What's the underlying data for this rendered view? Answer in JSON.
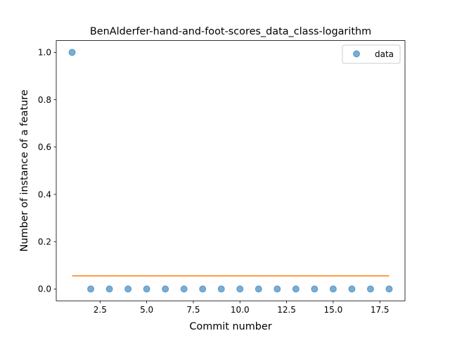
{
  "chart_data": {
    "type": "scatter",
    "title": "BenAlderfer-hand-and-foot-scores_data_class-logarithm",
    "xlabel": "Commit number",
    "ylabel": "Number of instance of a feature",
    "xlim": [
      0.15,
      18.85
    ],
    "ylim": [
      -0.05,
      1.05
    ],
    "xticks": [
      2.5,
      5.0,
      7.5,
      10.0,
      12.5,
      15.0,
      17.5
    ],
    "xtick_labels": [
      "2.5",
      "5.0",
      "7.5",
      "10.0",
      "12.5",
      "15.0",
      "17.5"
    ],
    "yticks": [
      0.0,
      0.2,
      0.4,
      0.6,
      0.8,
      1.0
    ],
    "ytick_labels": [
      "0.0",
      "0.2",
      "0.4",
      "0.6",
      "0.8",
      "1.0"
    ],
    "grid": false,
    "legend_position": "upper right",
    "series": [
      {
        "name": "data",
        "kind": "scatter",
        "color": "#1f77b4",
        "x": [
          1,
          2,
          3,
          4,
          5,
          6,
          7,
          8,
          9,
          10,
          11,
          12,
          13,
          14,
          15,
          16,
          17,
          18
        ],
        "y": [
          1,
          0,
          0,
          0,
          0,
          0,
          0,
          0,
          0,
          0,
          0,
          0,
          0,
          0,
          0,
          0,
          0,
          0
        ]
      },
      {
        "kind": "line",
        "color": "#ff7f0e",
        "x": [
          1,
          18
        ],
        "y": [
          0.0556,
          0.0556
        ]
      }
    ]
  }
}
